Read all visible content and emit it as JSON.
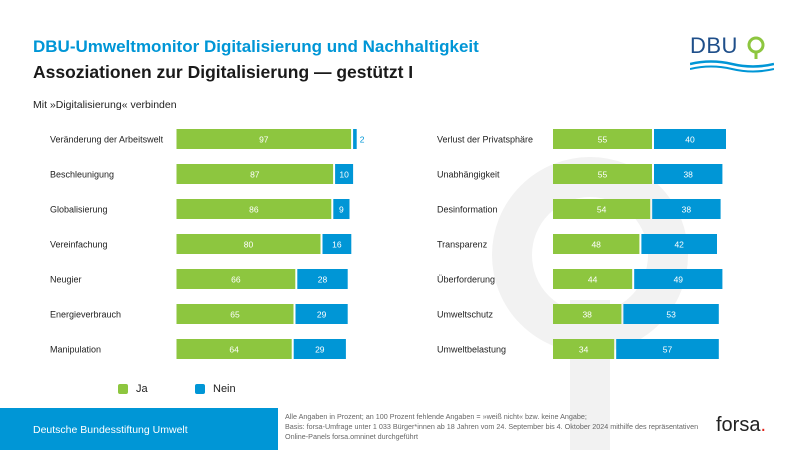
{
  "header": {
    "title": "DBU-Umweltmonitor Digitalisierung und Nachhaltigkeit",
    "subtitle": "Assoziationen zur Digitalisierung — gestützt I",
    "logo_text": "DBU"
  },
  "question": "Mit »Digitalisierung« verbinden",
  "colors": {
    "ja": "#8dc63f",
    "nein": "#0096d6",
    "brand": "#0096d6"
  },
  "chart_data": {
    "type": "bar",
    "orientation": "horizontal",
    "stacked": true,
    "xlim": [
      0,
      100
    ],
    "unit": "%",
    "legend": [
      "Ja",
      "Nein"
    ],
    "groups": [
      {
        "categories": [
          "Veränderung der Arbeitswelt",
          "Beschleunigung",
          "Globalisierung",
          "Vereinfachung",
          "Neugier",
          "Energieverbrauch",
          "Manipulation"
        ],
        "series": [
          {
            "name": "Ja",
            "values": [
              97,
              87,
              86,
              80,
              66,
              65,
              64
            ]
          },
          {
            "name": "Nein",
            "values": [
              2,
              10,
              9,
              16,
              28,
              29,
              29
            ]
          }
        ]
      },
      {
        "categories": [
          "Verlust der Privatsphäre",
          "Unabhängigkeit",
          "Desinformation",
          "Transparenz",
          "Überforderung",
          "Umweltschutz",
          "Umweltbelastung"
        ],
        "series": [
          {
            "name": "Ja",
            "values": [
              55,
              55,
              54,
              48,
              44,
              38,
              34
            ]
          },
          {
            "name": "Nein",
            "values": [
              40,
              38,
              38,
              42,
              49,
              53,
              57
            ]
          }
        ]
      }
    ]
  },
  "footer": {
    "organization": "Deutsche Bundesstiftung Umwelt",
    "note_line1": "Alle Angaben in Prozent; an 100 Prozent fehlende Angaben = »weiß nicht« bzw. keine Angabe;",
    "note_line2": "Basis: forsa-Umfrage unter 1 033 Bürger*innen ab 18 Jahren vom 24. September bis 4. Oktober 2024 mithilfe des repräsentativen",
    "note_line3": "Online-Panels forsa.omninet durchgeführt",
    "forsa_name": "forsa",
    "forsa_dot": "."
  }
}
